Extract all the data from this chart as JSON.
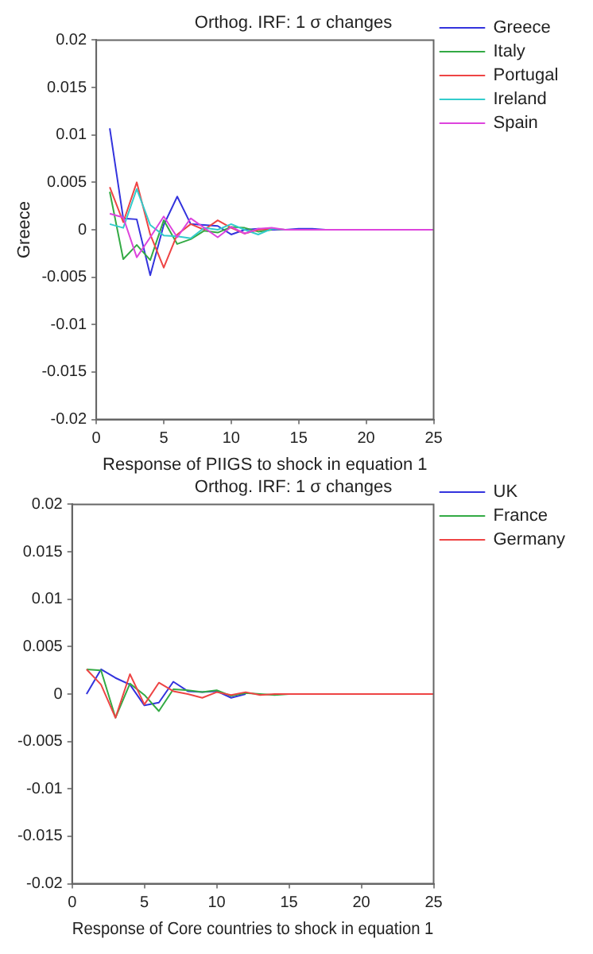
{
  "chart_data": [
    {
      "type": "line",
      "title": "Orthog. IRF: 1 σ changes",
      "xlabel": "Response of PIIGS to shock in equation 1",
      "ylabel": "Greece",
      "x": [
        1,
        2,
        3,
        4,
        5,
        6,
        7,
        8,
        9,
        10,
        11,
        12,
        13,
        14,
        15,
        16,
        17,
        18,
        19,
        20,
        21,
        22,
        23,
        24,
        25
      ],
      "xlim": [
        0,
        25
      ],
      "xticks": [
        0,
        5,
        10,
        15,
        20,
        25
      ],
      "ylim": [
        -0.02,
        0.02
      ],
      "yticks": [
        -0.02,
        -0.015,
        -0.01,
        -0.005,
        0,
        0.005,
        0.01,
        0.015,
        0.02
      ],
      "grid": false,
      "legend": "top right",
      "marker": "none",
      "line_style": "solid",
      "series": [
        {
          "name": "Greece",
          "color": "#3333dd",
          "values": [
            0.0107,
            0.0012,
            0.0011,
            -0.0048,
            0.0005,
            0.0035,
            0.0006,
            0.0005,
            0.0004,
            -0.0005,
            0,
            0.0001,
            0,
            0,
            0.0001,
            0.0001,
            0,
            null,
            null,
            null,
            null,
            null,
            null,
            null,
            null
          ]
        },
        {
          "name": "Italy",
          "color": "#33aa44",
          "values": [
            0.004,
            -0.0031,
            -0.0016,
            -0.0032,
            0.001,
            -0.0015,
            -0.001,
            -0.0001,
            -0.0003,
            0.0003,
            0.0002,
            -0.0002,
            0,
            null,
            null,
            null,
            null,
            null,
            null,
            null,
            null,
            null,
            null,
            null,
            null
          ]
        },
        {
          "name": "Portugal",
          "color": "#ee4444",
          "values": [
            0.0045,
            0.0008,
            0.005,
            -0.0005,
            -0.004,
            -0.0005,
            0.0006,
            0,
            0.001,
            0.0002,
            -0.0004,
            0,
            0.0001,
            0,
            null,
            null,
            null,
            null,
            null,
            null,
            null,
            null,
            null,
            null,
            null
          ]
        },
        {
          "name": "Ireland",
          "color": "#33cccc",
          "values": [
            0.0006,
            0.0002,
            0.0043,
            0.0005,
            -0.0006,
            -0.0007,
            -0.0009,
            0.0002,
            0,
            0.0006,
            0,
            -0.0005,
            0.0001,
            0,
            null,
            null,
            null,
            null,
            null,
            null,
            null,
            null,
            null,
            null,
            null
          ]
        },
        {
          "name": "Spain",
          "color": "#dd44dd",
          "values": [
            0.0017,
            0.0013,
            -0.0029,
            -0.0008,
            0.0014,
            -0.0008,
            0.0012,
            0.0002,
            -0.0008,
            0.0003,
            -0.0004,
            0.0001,
            0.0002,
            0,
            0,
            0,
            0,
            0,
            0,
            0,
            0,
            0,
            0,
            0,
            0
          ]
        }
      ]
    },
    {
      "type": "line",
      "title": "Orthog. IRF: 1 σ changes",
      "xlabel": "Response of Core countries to shock in equation 1",
      "x": [
        1,
        2,
        3,
        4,
        5,
        6,
        7,
        8,
        9,
        10,
        11,
        12,
        13,
        14,
        15,
        16,
        17,
        18,
        19,
        20,
        21,
        22,
        23,
        24,
        25
      ],
      "xlim": [
        0,
        25
      ],
      "xticks": [
        0,
        5,
        10,
        15,
        20,
        25
      ],
      "ylim": [
        -0.02,
        0.02
      ],
      "yticks": [
        -0.02,
        -0.015,
        -0.01,
        -0.005,
        0,
        0.005,
        0.01,
        0.015,
        0.02
      ],
      "grid": false,
      "legend": "top right",
      "marker": "none",
      "line_style": "solid",
      "series": [
        {
          "name": "UK",
          "color": "#3333dd",
          "values": [
            0,
            0.0026,
            0.0017,
            0.001,
            -0.0012,
            -0.0009,
            0.0013,
            0.0003,
            0.0002,
            0.0003,
            -0.0004,
            0,
            null,
            null,
            null,
            null,
            null,
            null,
            null,
            null,
            null,
            null,
            null,
            null,
            null
          ]
        },
        {
          "name": "France",
          "color": "#33aa44",
          "values": [
            0.0026,
            0.0025,
            -0.0025,
            0.0011,
            -0.0001,
            -0.0018,
            0.0005,
            0.0004,
            0.0002,
            0.0004,
            -0.0002,
            0.0001,
            0,
            -0.0001,
            0,
            null,
            null,
            null,
            null,
            null,
            null,
            null,
            null,
            null,
            null
          ]
        },
        {
          "name": "Germany",
          "color": "#ee4444",
          "values": [
            0.0026,
            0.001,
            -0.0025,
            0.0021,
            -0.0011,
            0.0012,
            0.0003,
            0,
            -0.0004,
            0.0002,
            -0.0001,
            0.0002,
            -0.0001,
            0,
            0,
            0,
            0,
            0,
            0,
            0,
            0,
            0,
            0,
            0,
            0
          ]
        }
      ]
    }
  ]
}
